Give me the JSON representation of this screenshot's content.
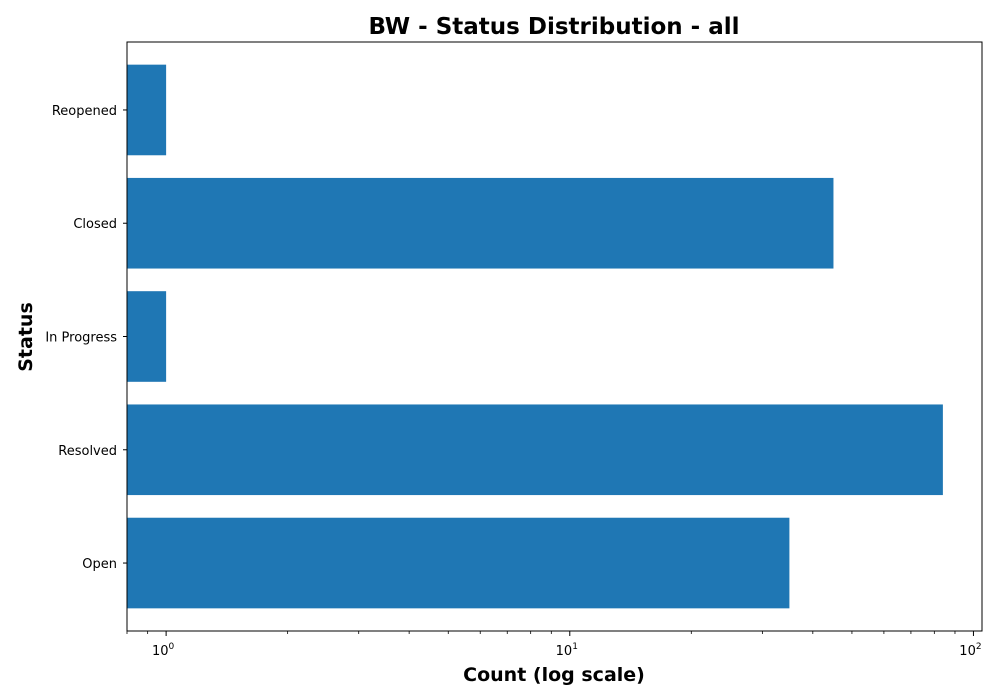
{
  "chart_data": {
    "type": "bar",
    "orientation": "horizontal",
    "title": "BW - Status Distribution - all",
    "xlabel": "Count (log scale)",
    "ylabel": "Status",
    "x_scale": "log",
    "xlim": [
      0.8,
      105
    ],
    "categories": [
      "Open",
      "Resolved",
      "In Progress",
      "Closed",
      "Reopened"
    ],
    "values": [
      35,
      84,
      1,
      45,
      1
    ],
    "x_ticks": [
      {
        "base": "10",
        "exp": "0",
        "value": 1
      },
      {
        "base": "10",
        "exp": "1",
        "value": 10
      },
      {
        "base": "10",
        "exp": "2",
        "value": 100
      }
    ],
    "bar_color": "#1f77b4",
    "grid": false,
    "legend": "none"
  }
}
